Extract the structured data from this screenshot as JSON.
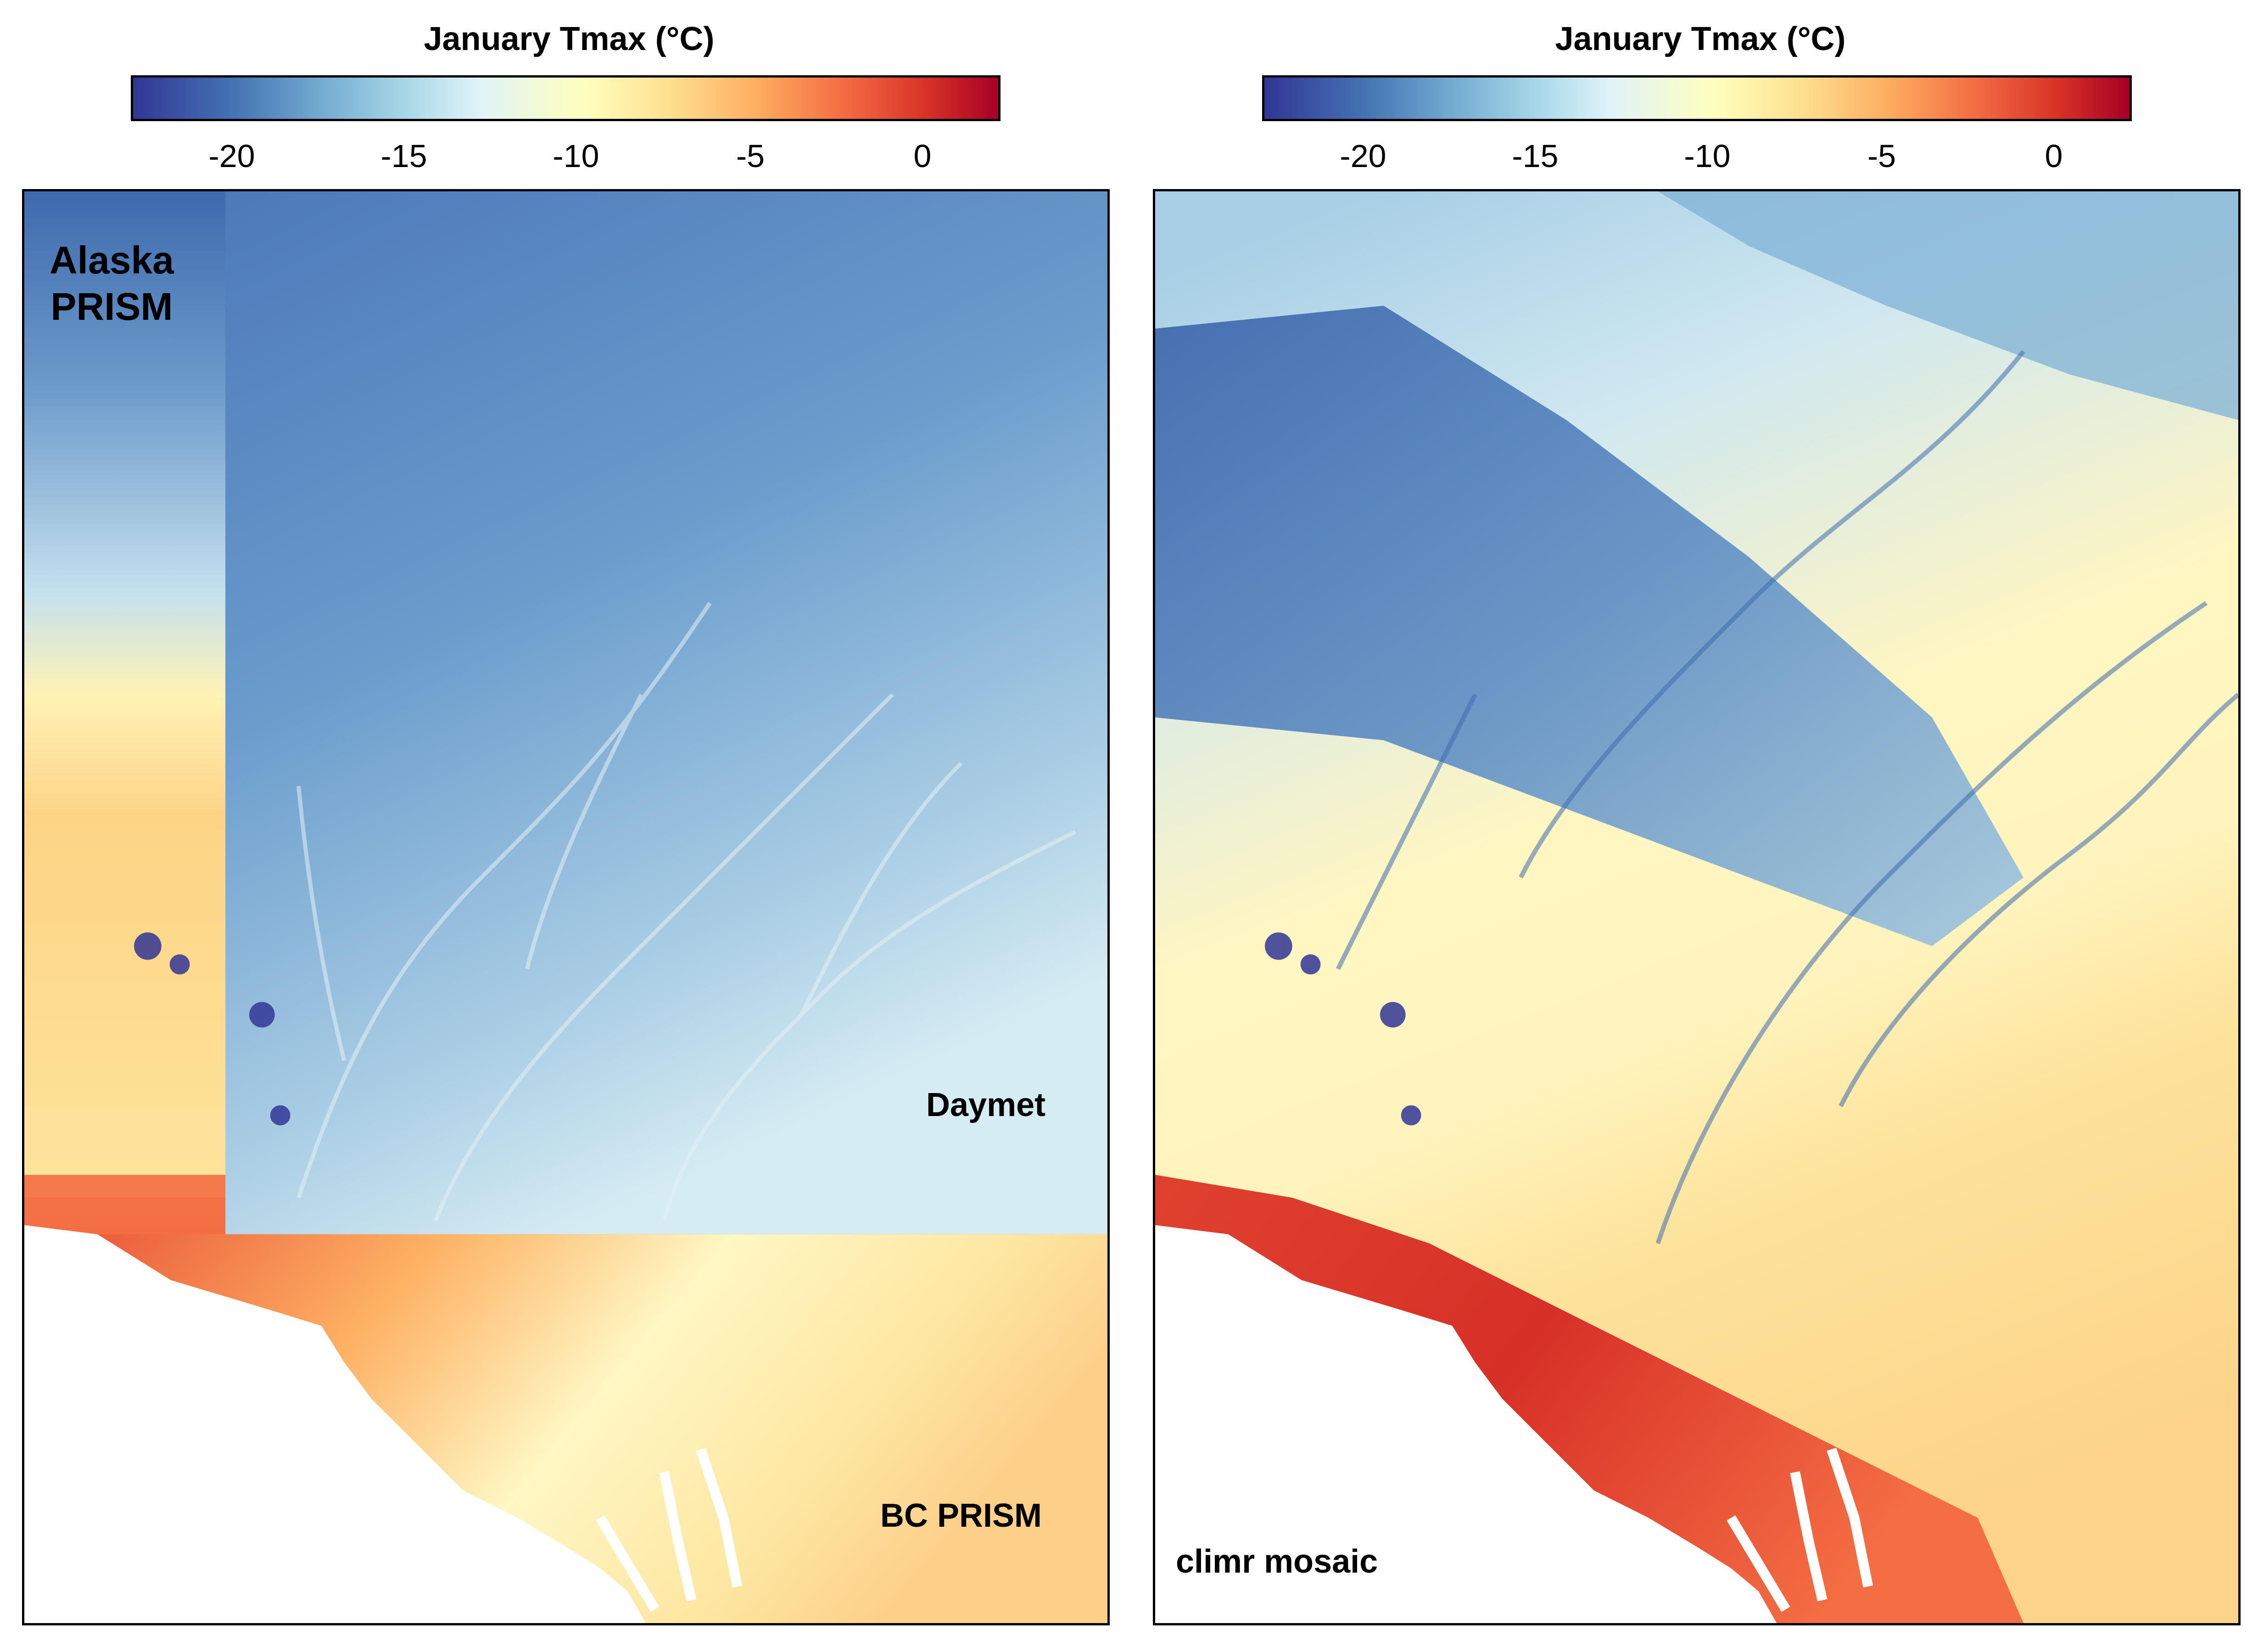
{
  "left_panel": {
    "legend": {
      "title": "January Tmax (°C)",
      "ticks": [
        "-20",
        "-15",
        "-10",
        "-5",
        "0"
      ]
    },
    "labels": {
      "alaska_prism": [
        "Alaska",
        "PRISM"
      ],
      "daymet": "Daymet",
      "bc_prism": "BC PRISM"
    }
  },
  "right_panel": {
    "legend": {
      "title": "January Tmax (°C)",
      "ticks": [
        "-20",
        "-15",
        "-10",
        "-5",
        "0"
      ]
    },
    "labels": {
      "mosaic": "climr mosaic"
    }
  },
  "colors": {
    "scale": [
      "#313695",
      "#4575b4",
      "#74add1",
      "#abd9e9",
      "#e0f3f8",
      "#ffffbf",
      "#fee090",
      "#fdae61",
      "#f46d43",
      "#d73027",
      "#a50026"
    ],
    "ocean": "#ffffff"
  }
}
